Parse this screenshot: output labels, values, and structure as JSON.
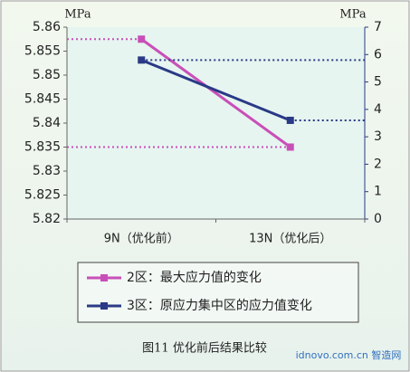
{
  "chart_data": {
    "type": "line",
    "categories": [
      "9N（优化前）",
      "13N（优化后）"
    ],
    "series": [
      {
        "name": "2区：最大应力值的变化",
        "color": "#c94fb8",
        "values": [
          5.8575,
          5.835
        ]
      },
      {
        "name": "3区：原应力集中区的应力值变化",
        "color": "#2a3a86",
        "values": [
          5.8,
          3.6
        ],
        "axis": "y2"
      }
    ],
    "ylim": [
      5.82,
      5.86
    ],
    "yticks": [
      5.82,
      5.825,
      5.83,
      5.835,
      5.84,
      5.845,
      5.85,
      5.855,
      5.86
    ],
    "y2lim": [
      0,
      7
    ],
    "y2ticks": [
      0,
      1,
      2,
      3,
      4,
      5,
      6,
      7
    ],
    "ylabel": "MPa",
    "y2label": "MPa",
    "caption": "图11  优化前后结果比较",
    "watermark": "idnovo.com.cn 智造网"
  }
}
